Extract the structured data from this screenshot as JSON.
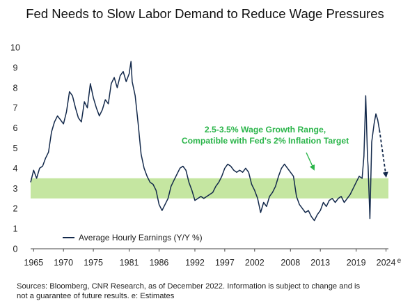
{
  "chart_data": {
    "type": "line",
    "title": "Fed Needs to Slow Labor Demand to Reduce Wage Pressures",
    "xlabel": "",
    "ylabel": "",
    "xlim": [
      1964.5,
      2024.4
    ],
    "ylim": [
      0,
      10
    ],
    "x_ticks": [
      "1965",
      "1970",
      "1975",
      "1981",
      "1986",
      "1992",
      "1997",
      "2002",
      "2008",
      "2013",
      "2019",
      "2024"
    ],
    "x_tick_values": [
      1965,
      1970,
      1975,
      1981,
      1986,
      1992,
      1997,
      2002,
      2008,
      2013,
      2019,
      2024
    ],
    "x_tick_suffix": "e",
    "y_ticks": [
      0,
      1,
      2,
      3,
      4,
      5,
      6,
      7,
      8,
      9,
      10
    ],
    "grid": false,
    "legend_position": "bottom-left",
    "band": {
      "low": 2.5,
      "high": 3.5,
      "color": "#c5e6a1"
    },
    "annotation": [
      "2.5-3.5% Wage Growth Range,",
      "Compatible with Fed's 2% Inflation Target"
    ],
    "annotation_color": "#2bb54a",
    "series": [
      {
        "name": "Average Hourly Earnings (Y/Y %)",
        "color": "#13294b",
        "x": [
          1964.5,
          1965.0,
          1965.5,
          1966.0,
          1966.5,
          1967.0,
          1967.5,
          1968.0,
          1968.5,
          1969.0,
          1969.5,
          1970.0,
          1970.5,
          1971.0,
          1971.5,
          1972.0,
          1972.5,
          1973.0,
          1973.5,
          1974.0,
          1974.5,
          1975.0,
          1975.5,
          1976.0,
          1976.5,
          1977.0,
          1977.5,
          1978.0,
          1978.5,
          1979.0,
          1979.5,
          1980.0,
          1980.5,
          1981.0,
          1981.3,
          1981.5,
          1982.0,
          1982.5,
          1983.0,
          1983.5,
          1984.0,
          1984.5,
          1985.0,
          1985.5,
          1986.0,
          1986.5,
          1987.0,
          1987.5,
          1988.0,
          1988.5,
          1989.0,
          1989.5,
          1990.0,
          1990.5,
          1991.0,
          1991.5,
          1992.0,
          1992.5,
          1993.0,
          1993.5,
          1994.0,
          1994.5,
          1995.0,
          1995.5,
          1996.0,
          1996.5,
          1997.0,
          1997.5,
          1998.0,
          1998.5,
          1999.0,
          1999.5,
          2000.0,
          2000.5,
          2001.0,
          2001.5,
          2002.0,
          2002.5,
          2003.0,
          2003.5,
          2004.0,
          2004.5,
          2005.0,
          2005.5,
          2006.0,
          2006.5,
          2007.0,
          2007.5,
          2008.0,
          2008.5,
          2009.0,
          2009.5,
          2010.0,
          2010.5,
          2011.0,
          2011.5,
          2012.0,
          2012.5,
          2013.0,
          2013.5,
          2014.0,
          2014.5,
          2015.0,
          2015.5,
          2016.0,
          2016.5,
          2017.0,
          2017.5,
          2018.0,
          2018.5,
          2019.0,
          2019.5,
          2020.0,
          2020.3,
          2020.6,
          2020.9,
          2021.0,
          2021.3,
          2021.6,
          2022.0,
          2022.3,
          2022.6,
          2022.9
        ],
        "y": [
          3.3,
          3.9,
          3.5,
          4.0,
          4.1,
          4.5,
          4.8,
          5.8,
          6.3,
          6.6,
          6.4,
          6.2,
          6.8,
          7.8,
          7.6,
          7.0,
          6.5,
          6.3,
          7.3,
          7.0,
          8.2,
          7.5,
          7.0,
          6.6,
          6.9,
          7.4,
          7.2,
          8.2,
          8.5,
          8.0,
          8.6,
          8.8,
          8.3,
          8.7,
          9.3,
          8.3,
          7.6,
          6.2,
          4.7,
          4.0,
          3.6,
          3.3,
          3.2,
          2.9,
          2.2,
          1.9,
          2.2,
          2.5,
          3.1,
          3.4,
          3.7,
          4.0,
          4.1,
          3.9,
          3.3,
          2.9,
          2.4,
          2.5,
          2.6,
          2.5,
          2.6,
          2.7,
          2.8,
          3.1,
          3.3,
          3.6,
          4.0,
          4.2,
          4.1,
          3.9,
          3.8,
          3.9,
          3.8,
          4.0,
          3.8,
          3.2,
          2.9,
          2.5,
          1.8,
          2.3,
          2.1,
          2.6,
          2.8,
          3.1,
          3.6,
          4.0,
          4.2,
          4.0,
          3.8,
          3.6,
          2.6,
          2.2,
          2.0,
          1.8,
          1.9,
          1.6,
          1.4,
          1.7,
          1.9,
          2.3,
          2.1,
          2.4,
          2.5,
          2.3,
          2.5,
          2.6,
          2.3,
          2.5,
          2.7,
          3.0,
          3.3,
          3.6,
          3.5,
          4.6,
          7.6,
          4.5,
          4.1,
          1.5,
          5.3,
          6.2,
          6.7,
          6.4,
          5.9
        ]
      },
      {
        "name": "",
        "style": "dashed",
        "color": "#13294b",
        "x": [
          2022.9,
          2024.0
        ],
        "y": [
          5.9,
          3.6
        ]
      }
    ]
  },
  "footnote": [
    "Sources: Bloomberg, CNR Research, as of December  2022. Information is subject to change and is",
    "not a guarantee of future results. e: Estimates"
  ]
}
